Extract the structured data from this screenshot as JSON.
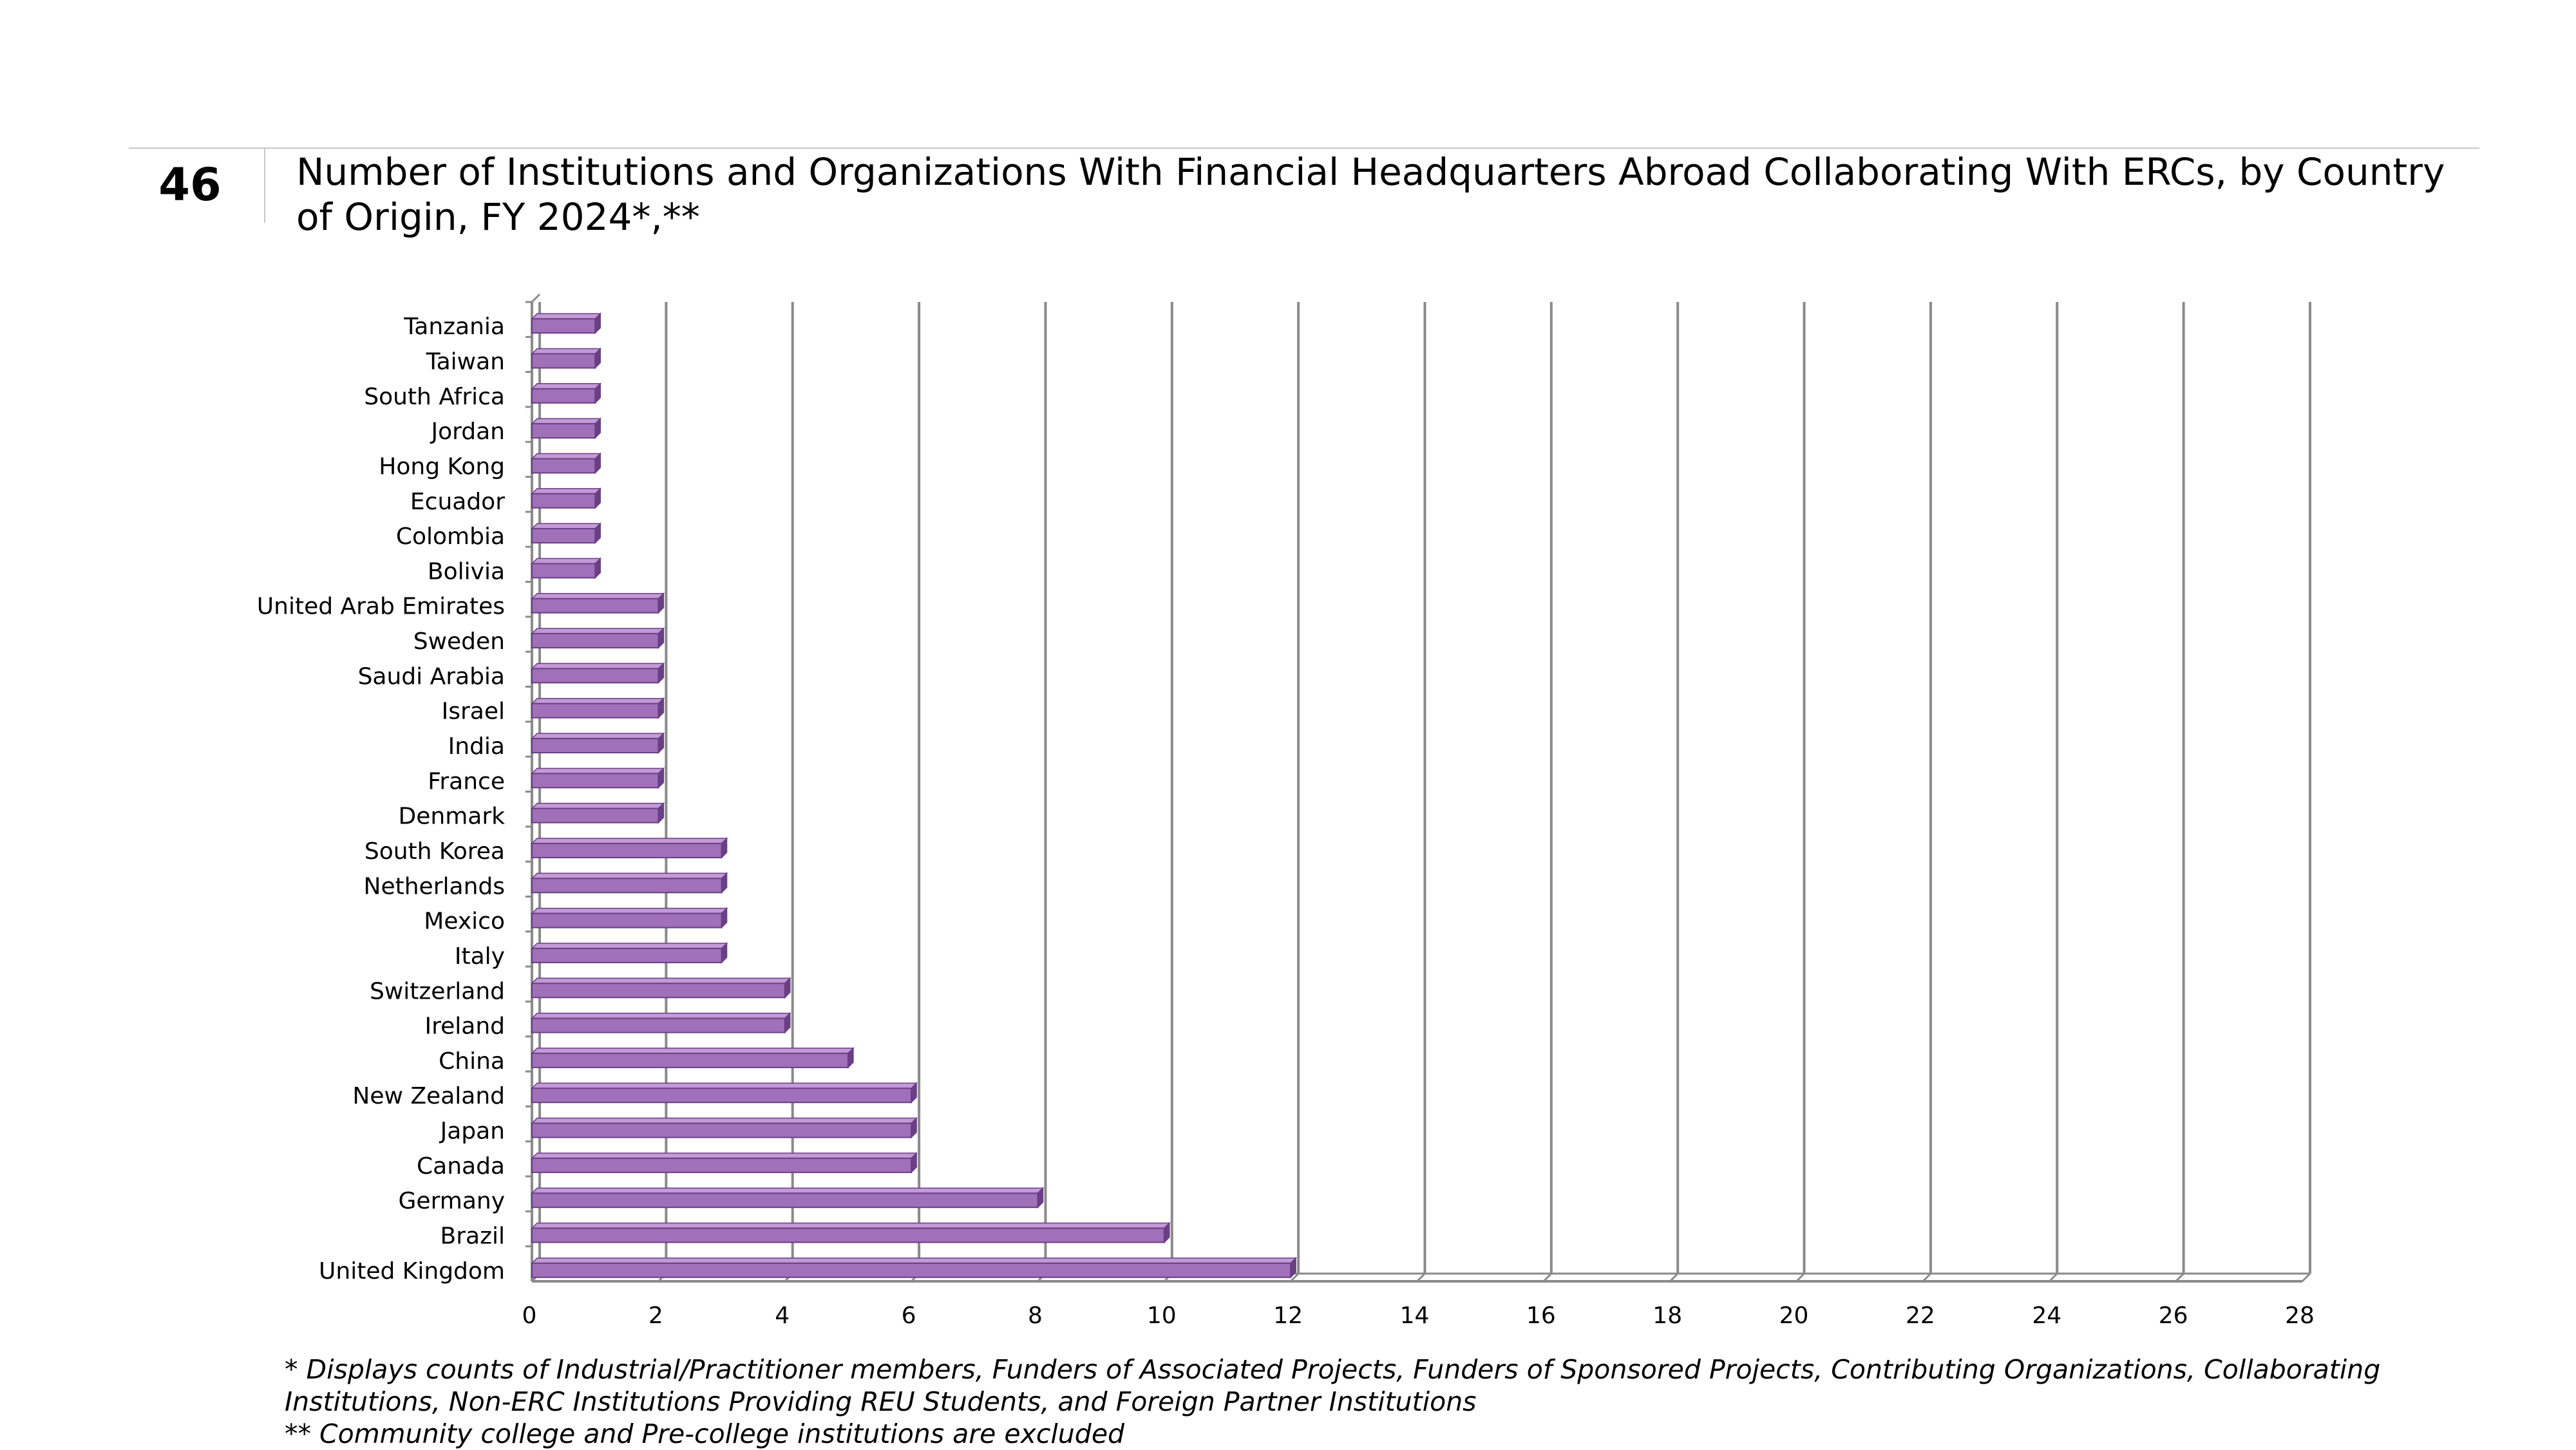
{
  "slide": {
    "number": "46"
  },
  "footnotes": {
    "line1": "* Displays counts of Industrial/Practitioner members, Funders of Associated Projects, Funders of Sponsored Projects, Contributing Organizations, Collaborating Institutions, Non-ERC Institutions Providing REU Students, and Foreign Partner Institutions",
    "line2": "** Community college and Pre-college institutions are excluded"
  },
  "chart_data": {
    "type": "bar",
    "orientation": "horizontal",
    "title": "Number of Institutions and Organizations With Financial Headquarters Abroad Collaborating With ERCs, by Country of Origin, FY 2024*,**",
    "xlabel": "",
    "ylabel": "",
    "xlim": [
      0,
      28
    ],
    "x_ticks": [
      0,
      2,
      4,
      6,
      8,
      10,
      12,
      14,
      16,
      18,
      20,
      22,
      24,
      26,
      28
    ],
    "grid": "vertical",
    "legend": "none",
    "bar_color": "#a070b8",
    "bar_edge_color": "#6a3f85",
    "categories": [
      "Tanzania",
      "Taiwan",
      "South Africa",
      "Jordan",
      "Hong Kong",
      "Ecuador",
      "Colombia",
      "Bolivia",
      "United Arab Emirates",
      "Sweden",
      "Saudi Arabia",
      "Israel",
      "India",
      "France",
      "Denmark",
      "South Korea",
      "Netherlands",
      "Mexico",
      "Italy",
      "Switzerland",
      "Ireland",
      "China",
      "New Zealand",
      "Japan",
      "Canada",
      "Germany",
      "Brazil",
      "United Kingdom"
    ],
    "values": [
      1,
      1,
      1,
      1,
      1,
      1,
      1,
      1,
      2,
      2,
      2,
      2,
      2,
      2,
      2,
      3,
      3,
      3,
      3,
      4,
      4,
      5,
      6,
      6,
      6,
      8,
      10,
      12
    ]
  }
}
